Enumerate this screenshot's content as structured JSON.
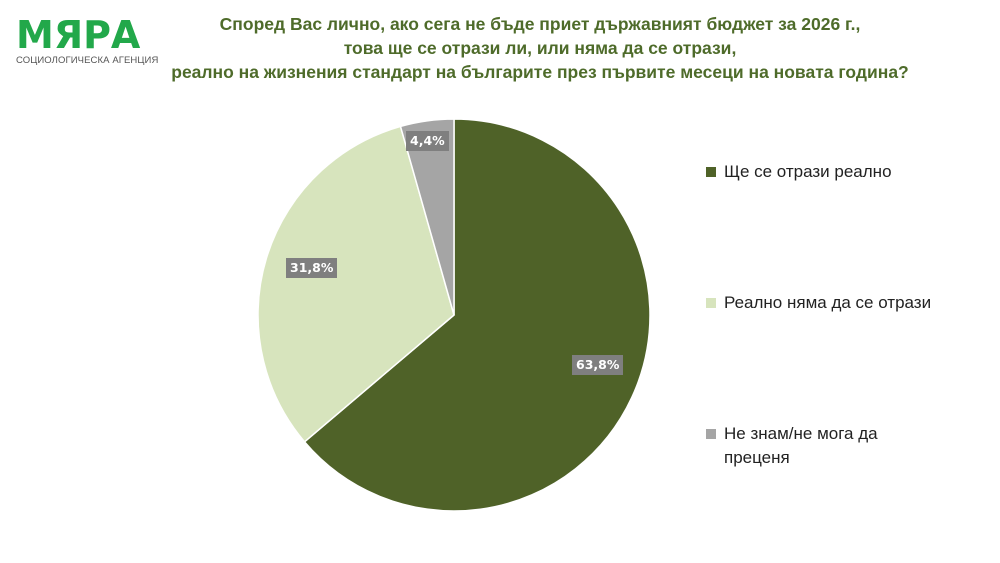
{
  "logo": {
    "name": "МЯРА",
    "subtitle": "СОЦИОЛОГИЧЕСКА АГЕНЦИЯ",
    "color": "#22a84a"
  },
  "title": {
    "line1": "Според Вас лично, ако сега не бъде приет държавният бюджет за 2026 г.,",
    "line2": "това ще се отрази ли, или няма да се отрази,",
    "line3": "реално на жизнения стандарт на българите през първите месеци на новата година?"
  },
  "legend": [
    {
      "label": "Ще се отрази реално",
      "color": "#4f6228"
    },
    {
      "label": "Реално няма да се отрази",
      "color": "#d7e4bd"
    },
    {
      "label_line1": "Не знам/не мога да",
      "label_line2": "преценя",
      "color": "#a5a5a5"
    }
  ],
  "data_labels": {
    "s1": "63,8%",
    "s2": "31,8%",
    "s3": "4,4%"
  },
  "chart_data": {
    "type": "pie",
    "title": "Според Вас лично, ако сега не бъде приет държавният бюджет за 2026 г., това ще се отрази ли, или няма да се отрази, реално на жизнения стандарт на българите през първите месеци на новата година?",
    "categories": [
      "Ще се отрази реално",
      "Реално няма да се отрази",
      "Не знам/не мога да преценя"
    ],
    "values": [
      63.8,
      31.8,
      4.4
    ],
    "value_labels": [
      "63,8%",
      "31,8%",
      "4,4%"
    ],
    "colors": [
      "#4f6228",
      "#d7e4bd",
      "#a5a5a5"
    ],
    "legend_position": "right"
  }
}
